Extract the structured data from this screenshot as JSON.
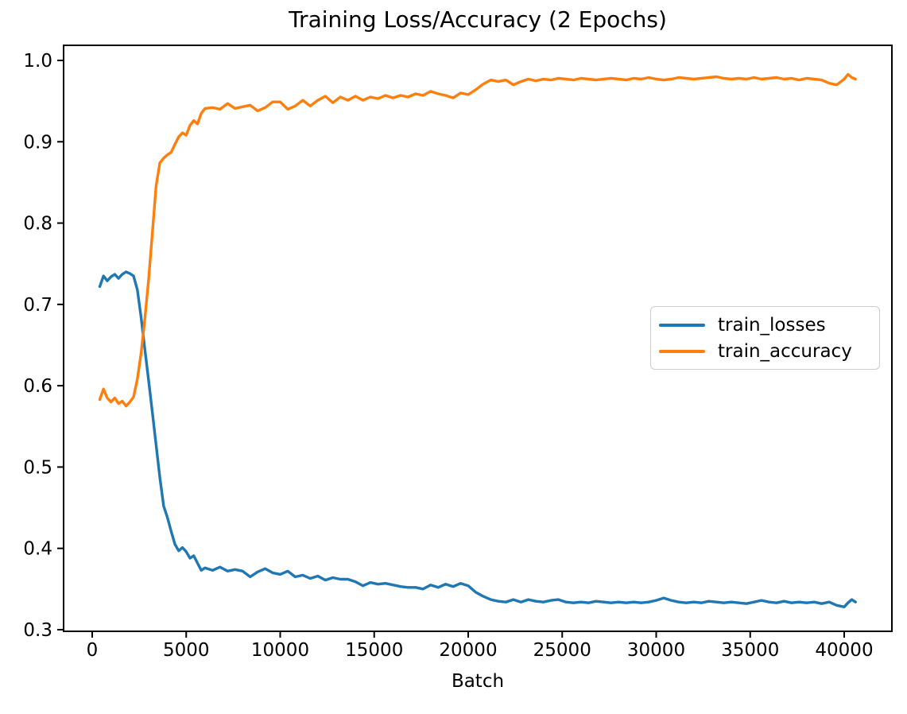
{
  "figure": {
    "background": "#ffffff",
    "spine_color": "#000000",
    "text_color": "#000000"
  },
  "chart_data": {
    "type": "line",
    "title": "Training Loss/Accuracy (2 Epochs)",
    "xlabel": "Batch",
    "ylabel": "",
    "grid": false,
    "legend_position": "center right",
    "xlim": [
      -1522,
      42537
    ],
    "ylim": [
      0.298,
      1.0186
    ],
    "x_ticks": [
      0,
      5000,
      10000,
      15000,
      20000,
      25000,
      30000,
      35000,
      40000
    ],
    "x_tick_labels": [
      "0",
      "5000",
      "10000",
      "15000",
      "20000",
      "25000",
      "30000",
      "35000",
      "40000"
    ],
    "y_ticks": [
      0.3,
      0.4,
      0.5,
      0.6,
      0.7,
      0.8,
      0.9,
      1.0
    ],
    "y_tick_labels": [
      "0.3",
      "0.4",
      "0.5",
      "0.6",
      "0.7",
      "0.8",
      "0.9",
      "1.0"
    ],
    "x": [
      400,
      600,
      800,
      1000,
      1200,
      1400,
      1600,
      1800,
      2000,
      2200,
      2400,
      2600,
      2800,
      3000,
      3200,
      3400,
      3600,
      3800,
      4000,
      4200,
      4400,
      4600,
      4800,
      5000,
      5200,
      5400,
      5600,
      5800,
      6000,
      6400,
      6800,
      7200,
      7600,
      8000,
      8400,
      8800,
      9200,
      9600,
      10000,
      10400,
      10800,
      11200,
      11600,
      12000,
      12400,
      12800,
      13200,
      13600,
      14000,
      14400,
      14800,
      15200,
      15600,
      16000,
      16400,
      16800,
      17200,
      17600,
      18000,
      18400,
      18800,
      19200,
      19600,
      20000,
      20400,
      20800,
      21200,
      21600,
      22000,
      22400,
      22800,
      23200,
      23600,
      24000,
      24400,
      24800,
      25200,
      25600,
      26000,
      26400,
      26800,
      27200,
      27600,
      28000,
      28400,
      28800,
      29200,
      29600,
      30000,
      30400,
      30800,
      31200,
      31600,
      32000,
      32400,
      32800,
      33200,
      33600,
      34000,
      34400,
      34800,
      35200,
      35600,
      36000,
      36400,
      36800,
      37200,
      37600,
      38000,
      38400,
      38800,
      39200,
      39600,
      40000,
      40200,
      40400,
      40600
    ],
    "series": [
      {
        "name": "train_losses",
        "color": "#1f77b4",
        "values": [
          0.722,
          0.735,
          0.729,
          0.734,
          0.737,
          0.732,
          0.737,
          0.74,
          0.738,
          0.735,
          0.718,
          0.684,
          0.645,
          0.607,
          0.567,
          0.527,
          0.487,
          0.452,
          0.438,
          0.421,
          0.405,
          0.397,
          0.401,
          0.396,
          0.388,
          0.391,
          0.382,
          0.373,
          0.376,
          0.373,
          0.377,
          0.372,
          0.374,
          0.372,
          0.365,
          0.371,
          0.375,
          0.37,
          0.368,
          0.372,
          0.365,
          0.367,
          0.363,
          0.366,
          0.361,
          0.364,
          0.362,
          0.362,
          0.359,
          0.354,
          0.358,
          0.356,
          0.357,
          0.355,
          0.353,
          0.352,
          0.352,
          0.35,
          0.355,
          0.352,
          0.356,
          0.353,
          0.357,
          0.354,
          0.346,
          0.341,
          0.337,
          0.335,
          0.334,
          0.337,
          0.334,
          0.337,
          0.335,
          0.334,
          0.336,
          0.337,
          0.334,
          0.333,
          0.334,
          0.333,
          0.335,
          0.334,
          0.333,
          0.334,
          0.333,
          0.334,
          0.333,
          0.334,
          0.336,
          0.339,
          0.336,
          0.334,
          0.333,
          0.334,
          0.333,
          0.335,
          0.334,
          0.333,
          0.334,
          0.333,
          0.332,
          0.334,
          0.336,
          0.334,
          0.333,
          0.335,
          0.333,
          0.334,
          0.333,
          0.334,
          0.332,
          0.334,
          0.33,
          0.328,
          0.333,
          0.337,
          0.334
        ]
      },
      {
        "name": "train_accuracy",
        "color": "#ff7f0e",
        "values": [
          0.583,
          0.596,
          0.585,
          0.58,
          0.585,
          0.578,
          0.581,
          0.575,
          0.58,
          0.586,
          0.608,
          0.64,
          0.682,
          0.73,
          0.788,
          0.846,
          0.874,
          0.88,
          0.884,
          0.887,
          0.897,
          0.906,
          0.911,
          0.908,
          0.92,
          0.926,
          0.922,
          0.935,
          0.941,
          0.942,
          0.94,
          0.947,
          0.941,
          0.943,
          0.945,
          0.938,
          0.942,
          0.949,
          0.949,
          0.94,
          0.944,
          0.951,
          0.944,
          0.951,
          0.956,
          0.948,
          0.955,
          0.951,
          0.956,
          0.951,
          0.955,
          0.953,
          0.957,
          0.954,
          0.957,
          0.955,
          0.959,
          0.957,
          0.962,
          0.959,
          0.957,
          0.954,
          0.96,
          0.958,
          0.964,
          0.971,
          0.976,
          0.974,
          0.976,
          0.97,
          0.974,
          0.977,
          0.975,
          0.977,
          0.976,
          0.978,
          0.977,
          0.976,
          0.978,
          0.977,
          0.976,
          0.977,
          0.978,
          0.977,
          0.976,
          0.978,
          0.977,
          0.979,
          0.977,
          0.976,
          0.977,
          0.979,
          0.978,
          0.977,
          0.978,
          0.979,
          0.98,
          0.978,
          0.977,
          0.978,
          0.977,
          0.979,
          0.977,
          0.978,
          0.979,
          0.977,
          0.978,
          0.976,
          0.978,
          0.977,
          0.976,
          0.972,
          0.97,
          0.977,
          0.983,
          0.979,
          0.977
        ]
      }
    ]
  }
}
